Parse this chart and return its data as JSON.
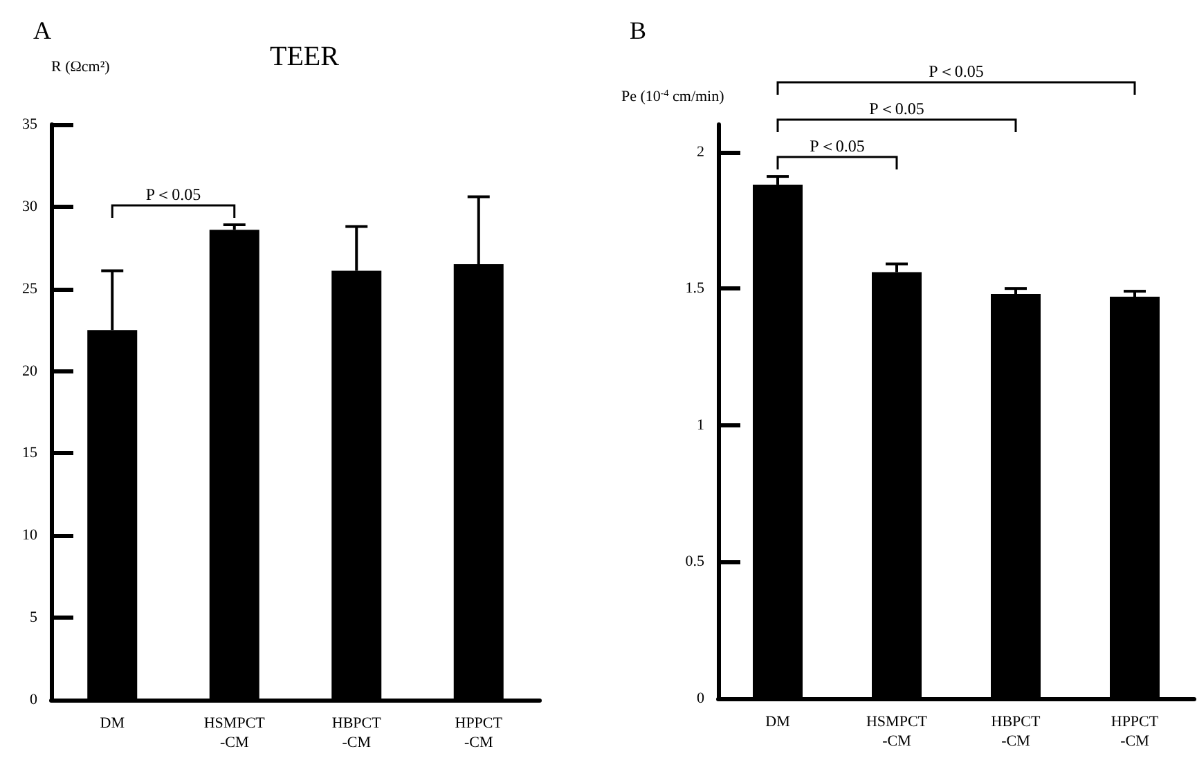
{
  "chart_data": [
    {
      "type": "bar",
      "title": "TEER",
      "ylabel": "R (Ωcm²)",
      "categories": [
        "DM",
        "HSMPCT\n-CM",
        "HBPCT\n-CM",
        "HPPCT\n-CM"
      ],
      "color": "#000000",
      "values": [
        22.5,
        28.6,
        26.1,
        26.5
      ],
      "errors": [
        [
          22.5,
          26.1
        ],
        [
          28.6,
          28.9
        ],
        [
          26.1,
          28.8
        ],
        [
          26.5,
          30.6
        ]
      ],
      "ylim": [
        0,
        35
      ],
      "yticks": [
        0,
        5,
        10,
        15,
        20,
        25,
        30,
        35
      ],
      "grid": false,
      "annotations": [
        "A",
        "P＜0.05"
      ]
    },
    {
      "type": "bar",
      "ylabel": "Pe (10$^{-4}$ cm/min)",
      "categories": [
        "DM",
        "HSMPCT\n-CM",
        "HBPCT\n-CM",
        "HPPCT\n-CM"
      ],
      "color": "#000000",
      "values": [
        1.88,
        1.56,
        1.48,
        1.47
      ],
      "errors": [
        [
          1.88,
          1.91
        ],
        [
          1.56,
          1.59
        ],
        [
          1.48,
          1.5
        ],
        [
          1.47,
          1.49
        ]
      ],
      "ylim": [
        0,
        2.1
      ],
      "yticks": [
        0,
        0.5,
        1,
        1.5,
        2
      ],
      "grid": false,
      "annotations": [
        "B",
        "P＜0.05",
        "P＜0.05",
        "P＜0.05"
      ]
    }
  ]
}
